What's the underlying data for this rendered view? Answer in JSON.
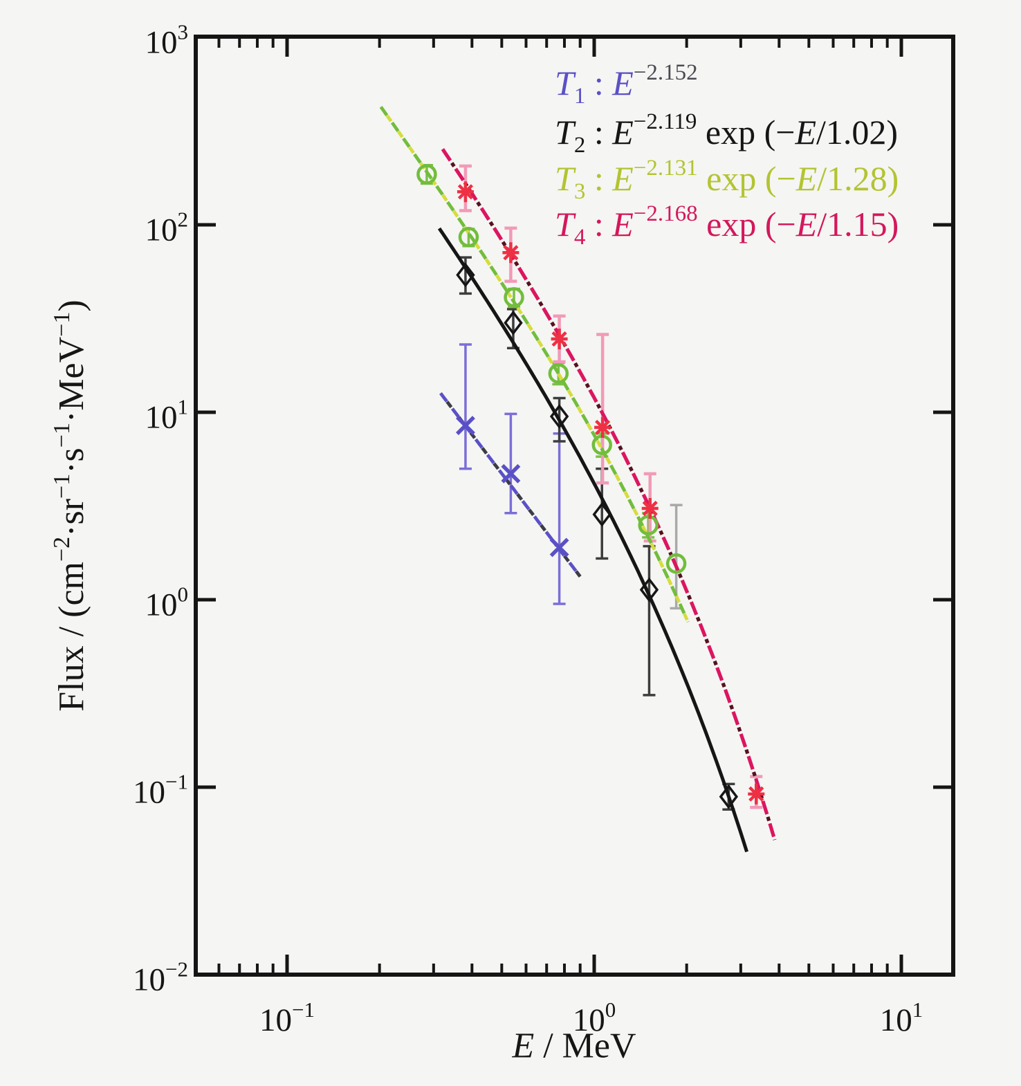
{
  "figure": {
    "bg": "#f5f5f3",
    "frame_color": "#151515"
  },
  "axes": {
    "x": {
      "title_parts": [
        {
          "t": "E",
          "s": "it"
        },
        {
          "t": " / MeV"
        }
      ],
      "ticks": [
        {
          "base": "10",
          "exp": "−1",
          "value": 0.1
        },
        {
          "base": "10",
          "exp": "0",
          "value": 1
        },
        {
          "base": "10",
          "exp": "1",
          "value": 10
        }
      ]
    },
    "y": {
      "title_parts": [
        {
          "t": "Flux / (cm"
        },
        {
          "t": "−2",
          "s": "sup"
        },
        {
          "t": "·sr"
        },
        {
          "t": "−1",
          "s": "sup"
        },
        {
          "t": "·s"
        },
        {
          "t": "−1",
          "s": "sup"
        },
        {
          "t": "·MeV"
        },
        {
          "t": "−1",
          "s": "sup"
        },
        {
          "t": ")"
        }
      ],
      "ticks": [
        {
          "base": "10",
          "exp": "3",
          "value": 1000
        },
        {
          "base": "10",
          "exp": "2",
          "value": 100
        },
        {
          "base": "10",
          "exp": "1",
          "value": 10
        },
        {
          "base": "10",
          "exp": "0",
          "value": 1
        },
        {
          "base": "10",
          "exp": "−1",
          "value": 0.1
        },
        {
          "base": "10",
          "exp": "−2",
          "value": 0.01
        }
      ]
    }
  },
  "legend": {
    "entries": [
      {
        "name": "T1",
        "color": "#5a50c6",
        "parts": [
          {
            "t": "T",
            "s": "it"
          },
          {
            "t": "1",
            "s": "sub"
          },
          {
            "t": " : "
          },
          {
            "t": "E",
            "s": "it"
          },
          {
            "t": "−2.152",
            "s": "sup",
            "c": "#4a4a52"
          }
        ]
      },
      {
        "name": "T2",
        "color": "#161616",
        "parts": [
          {
            "t": "T",
            "s": "it"
          },
          {
            "t": "2",
            "s": "sub"
          },
          {
            "t": " : "
          },
          {
            "t": "E",
            "s": "it"
          },
          {
            "t": "−2.119",
            "s": "sup"
          },
          {
            "t": " exp (−"
          },
          {
            "t": "E",
            "s": "it"
          },
          {
            "t": "/1.02)"
          }
        ]
      },
      {
        "name": "T3",
        "color": "#b3c431",
        "parts": [
          {
            "t": "T",
            "s": "it"
          },
          {
            "t": "3",
            "s": "sub"
          },
          {
            "t": " : "
          },
          {
            "t": "E",
            "s": "it"
          },
          {
            "t": "−2.131",
            "s": "sup"
          },
          {
            "t": " exp (−"
          },
          {
            "t": "E",
            "s": "it"
          },
          {
            "t": "/1.28)"
          }
        ]
      },
      {
        "name": "T4",
        "color": "#d4175c",
        "parts": [
          {
            "t": "T",
            "s": "it"
          },
          {
            "t": "4",
            "s": "sub"
          },
          {
            "t": " : "
          },
          {
            "t": "E",
            "s": "it"
          },
          {
            "t": "−2.168",
            "s": "sup"
          },
          {
            "t": " exp (−"
          },
          {
            "t": "E",
            "s": "it"
          },
          {
            "t": "/1.15)"
          }
        ]
      }
    ]
  },
  "chart_data": {
    "type": "scatter",
    "title": "",
    "xlabel": "E / MeV",
    "ylabel": "Flux / (cm−2·sr−1·s−1·MeV−1)",
    "xscale": "log",
    "yscale": "log",
    "xlim": [
      0.0504,
      14.8
    ],
    "ylim": [
      0.01,
      1010
    ],
    "grid": false,
    "legend_position": "upper right",
    "series": [
      {
        "name": "T1",
        "marker": "x",
        "line": "dashed",
        "color": "#5a50c6",
        "alt_color": "#3c3c46",
        "err_color": "#7a6ed8",
        "fit": {
          "A": 1.06,
          "index": -2.152,
          "E0": null,
          "range": [
            0.316,
            0.9
          ]
        },
        "fit_label": "E^-2.152",
        "points": [
          {
            "E": 0.381,
            "flux": 8.5,
            "hi": 23,
            "lo": 5.0
          },
          {
            "E": 0.535,
            "flux": 4.7,
            "hi": 9.8,
            "lo": 2.9
          },
          {
            "E": 0.77,
            "flux": 1.9,
            "hi": 7.7,
            "lo": 0.95
          }
        ]
      },
      {
        "name": "T2",
        "marker": "diamond",
        "line": "solid",
        "color": "#161616",
        "alt_color": "#161616",
        "err_color": "#3d3d3d",
        "fit": {
          "A": 11.1,
          "index": -2.119,
          "E0": 1.02,
          "range": [
            0.313,
            3.14
          ]
        },
        "fit_label": "E^-2.119 exp(-E/1.02)",
        "points": [
          {
            "E": 0.381,
            "flux": 54,
            "hi": 67,
            "lo": 43
          },
          {
            "E": 0.545,
            "flux": 30,
            "hi": 35.5,
            "lo": 22
          },
          {
            "E": 0.77,
            "flux": 9.5,
            "hi": 11.9,
            "lo": 7.0
          },
          {
            "E": 1.06,
            "flux": 2.85,
            "hi": 5.0,
            "lo": 1.66
          },
          {
            "E": 1.51,
            "flux": 1.13,
            "hi": 1.93,
            "lo": 0.31
          },
          {
            "E": 2.74,
            "flux": 0.089,
            "hi": 0.104,
            "lo": 0.076
          }
        ]
      },
      {
        "name": "T3",
        "marker": "circle",
        "line": "dashed",
        "color": "#72bd3c",
        "alt_color": "#d6dc3c",
        "err_color": "#7cbf4a",
        "fit": {
          "A": 16.5,
          "index": -2.131,
          "E0": 1.28,
          "range": [
            0.202,
            2.02
          ]
        },
        "fit_label": "E^-2.131 exp(-E/1.28)",
        "points": [
          {
            "E": 0.285,
            "flux": 186,
            "hi": 208,
            "lo": 166
          },
          {
            "E": 0.39,
            "flux": 86,
            "hi": 95,
            "lo": 77
          },
          {
            "E": 0.548,
            "flux": 41,
            "hi": 45.5,
            "lo": 36.5
          },
          {
            "E": 0.765,
            "flux": 16.1,
            "hi": 18.3,
            "lo": 14.1
          },
          {
            "E": 1.06,
            "flux": 6.7,
            "hi": 7.7,
            "lo": 5.8
          },
          {
            "E": 1.5,
            "flux": 2.5,
            "hi": 2.9,
            "lo": 2.15
          },
          {
            "E": 1.85,
            "flux": 1.56,
            "hi": 3.2,
            "lo": 0.9,
            "ec": "#a9a9a9"
          }
        ]
      },
      {
        "name": "T4",
        "marker": "asterisk",
        "line": "dashdot",
        "color": "#ee3044",
        "line_color": "#dc1560",
        "alt_color": "#55121f",
        "err_color": "#f29ab8",
        "fit": {
          "A": 28.5,
          "index": -2.168,
          "E0": 1.15,
          "range": [
            0.321,
            3.87
          ]
        },
        "fit_label": "E^-2.168 exp(-E/1.15)",
        "points": [
          {
            "E": 0.381,
            "flux": 150,
            "hi": 206,
            "lo": 119
          },
          {
            "E": 0.535,
            "flux": 71,
            "hi": 96,
            "lo": 50
          },
          {
            "E": 0.77,
            "flux": 24.6,
            "hi": 32.6,
            "lo": 18.6
          },
          {
            "E": 1.065,
            "flux": 8.3,
            "hi": 26,
            "lo": 4.2
          },
          {
            "E": 1.52,
            "flux": 3.07,
            "hi": 4.7,
            "lo": 2.06
          },
          {
            "E": 3.37,
            "flux": 0.092,
            "hi": 0.114,
            "lo": 0.078
          }
        ]
      }
    ]
  }
}
